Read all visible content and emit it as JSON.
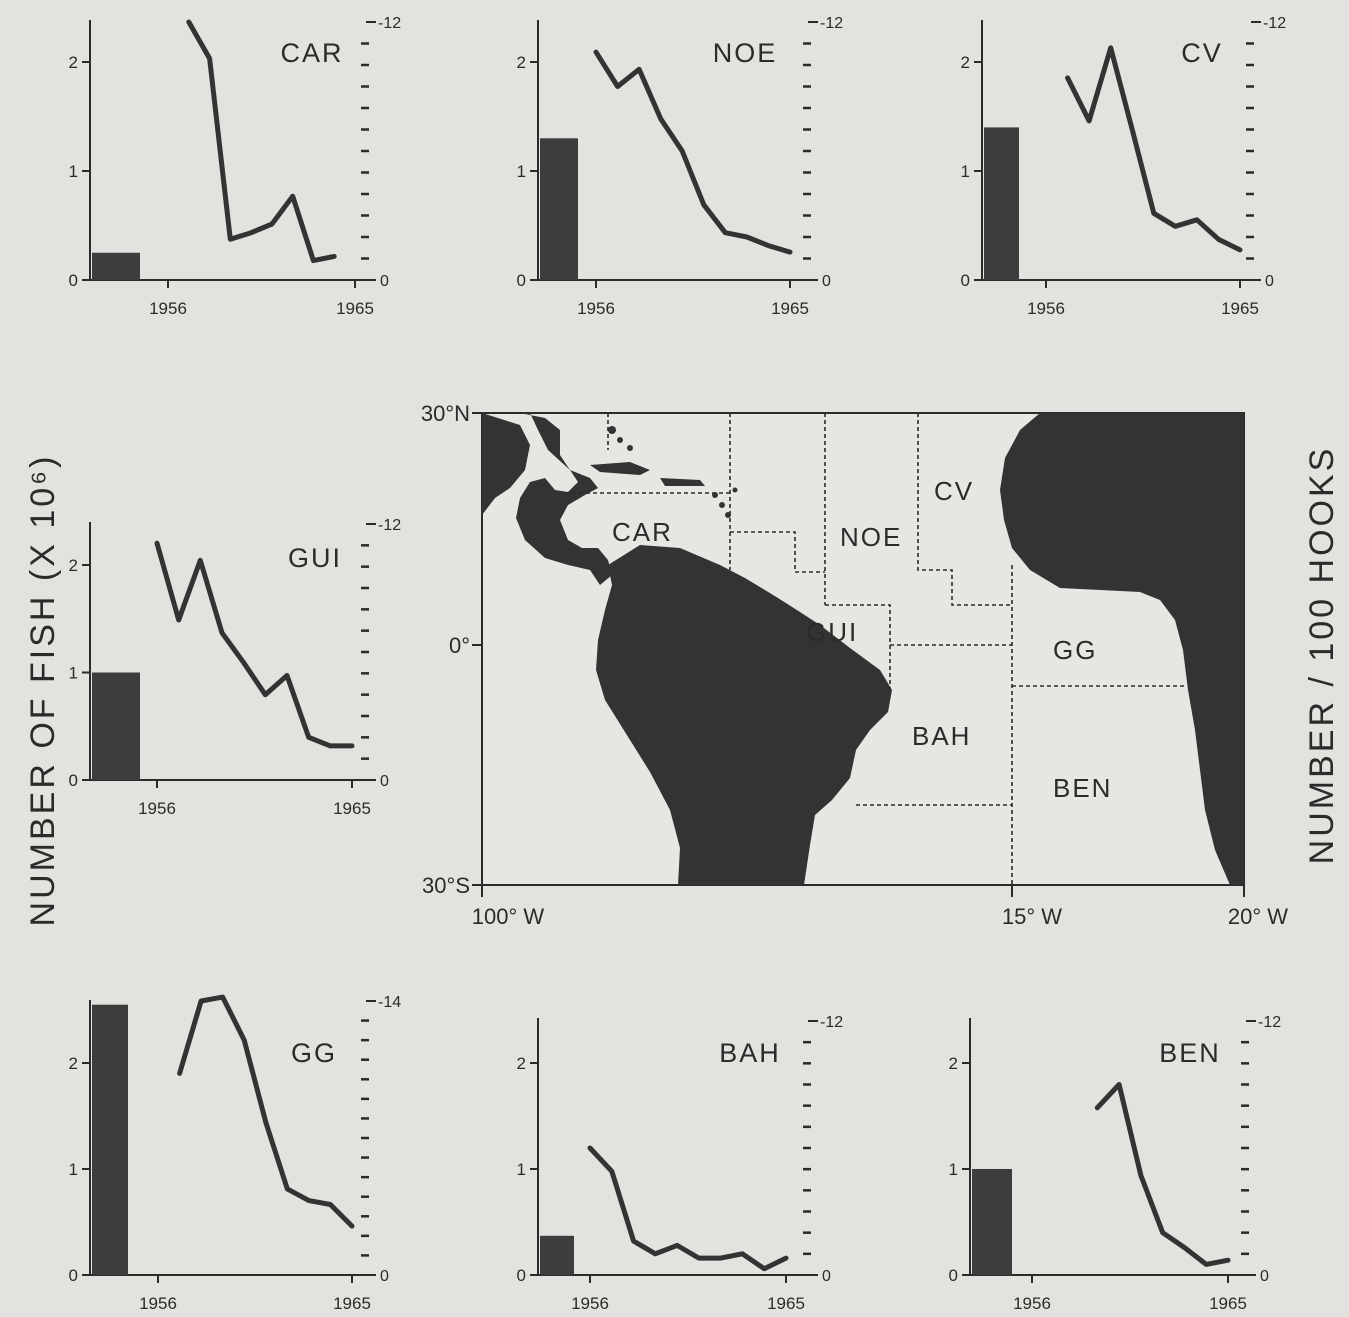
{
  "figure": {
    "left_axis_label": "NUMBER OF FISH  (X 10⁶)",
    "right_axis_label": "NUMBER / 100  HOOKS"
  },
  "chart_data": [
    {
      "area": "CAR",
      "type": "bar+line",
      "bar_value": 0.25,
      "right_max_label": "12",
      "x_start": "1956",
      "x_end": "1965",
      "cpue_years": [
        1957,
        1958,
        1959,
        1960,
        1961,
        1962,
        1963,
        1964,
        1965
      ],
      "cpue": [
        12.0,
        10.3,
        1.9,
        2.2,
        2.6,
        3.9,
        0.9,
        1.1,
        null
      ]
    },
    {
      "area": "NOE",
      "type": "bar+line",
      "bar_value": 1.3,
      "right_max_label": "12",
      "x_start": "1956",
      "x_end": "1965",
      "cpue_years": [
        1956,
        1957,
        1958,
        1959,
        1960,
        1961,
        1962,
        1963,
        1964,
        1965
      ],
      "cpue": [
        10.6,
        9.0,
        9.8,
        7.5,
        6.0,
        3.5,
        2.2,
        2.0,
        1.6,
        1.3
      ]
    },
    {
      "area": "CV",
      "type": "bar+line",
      "bar_value": 1.4,
      "right_max_label": "12",
      "x_start": "1956",
      "x_end": "1965",
      "cpue_years": [
        1957,
        1958,
        1959,
        1960,
        1961,
        1962,
        1963,
        1964,
        1965
      ],
      "cpue": [
        9.4,
        7.4,
        10.8,
        7.0,
        3.1,
        2.5,
        2.8,
        1.9,
        1.4
      ]
    },
    {
      "area": "GUI",
      "type": "bar+line",
      "bar_value": 1.0,
      "right_max_label": "12",
      "x_start": "1956",
      "x_end": "1965",
      "cpue_years": [
        1956,
        1957,
        1958,
        1959,
        1960,
        1961,
        1962,
        1963,
        1964,
        1965
      ],
      "cpue": [
        11.1,
        7.5,
        10.3,
        6.9,
        5.5,
        4.0,
        4.9,
        2.0,
        1.6,
        1.6
      ]
    },
    {
      "area": "GG",
      "type": "bar+line",
      "bar_value": 2.55,
      "right_max_label": "14",
      "x_start": "1956",
      "x_end": "1965",
      "cpue_years": [
        1957,
        1958,
        1959,
        1960,
        1961,
        1962,
        1963,
        1964,
        1965
      ],
      "cpue": [
        10.3,
        14.0,
        14.2,
        12.0,
        7.8,
        4.4,
        3.8,
        3.6,
        2.5
      ]
    },
    {
      "area": "BAH",
      "type": "bar+line",
      "bar_value": 0.37,
      "right_max_label": "12",
      "x_start": "1956",
      "x_end": "1965",
      "cpue_years": [
        1956,
        1957,
        1958,
        1959,
        1960,
        1961,
        1962,
        1963,
        1964,
        1965
      ],
      "cpue": [
        6.0,
        4.9,
        1.6,
        1.0,
        1.4,
        0.8,
        0.8,
        1.0,
        0.3,
        0.8
      ]
    },
    {
      "area": "BEN",
      "type": "bar+line",
      "bar_value": 1.0,
      "right_max_label": "12",
      "x_start": "1956",
      "x_end": "1965",
      "cpue_years": [
        1959,
        1960,
        1961,
        1962,
        1963,
        1964,
        1965
      ],
      "cpue": [
        7.9,
        9.0,
        4.7,
        2.0,
        1.3,
        0.5,
        0.7
      ]
    }
  ],
  "map": {
    "lat_top": "30°N",
    "lat_mid": "0°",
    "lat_bottom": "30°S",
    "lon_left": "100° W",
    "lon_mid": "15° W",
    "lon_right": "20° W",
    "areas": [
      "CAR",
      "NOE",
      "CV",
      "GUI",
      "GG",
      "BAH",
      "BEN"
    ]
  }
}
